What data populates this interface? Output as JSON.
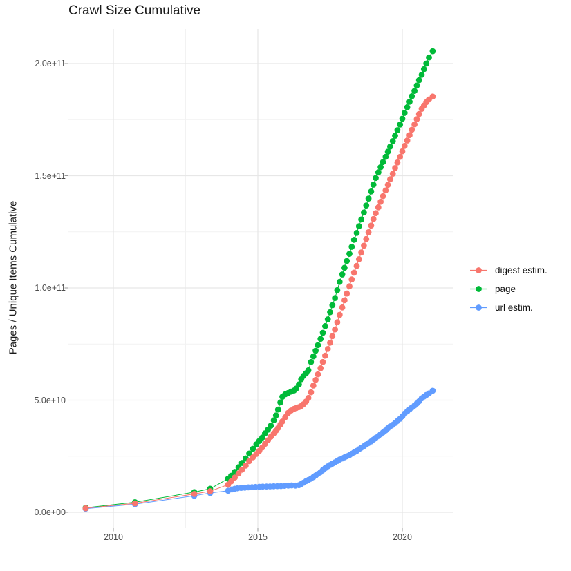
{
  "page": {
    "title": "Crawl Size Cumulative"
  },
  "chart_data": {
    "type": "scatter",
    "title": "Crawl Size Cumulative",
    "xlabel": "",
    "ylabel": "Pages / Unique Items Cumulative",
    "grid": true,
    "legend_position": "right",
    "background": "#ffffff",
    "gridline_color_major": "#e7e7e7",
    "gridline_color_minor": "#f2f2f2",
    "tick_color": "#999999",
    "axis_text_color": "#4d4d4d",
    "x_ticks": {
      "values": [
        2010,
        2015,
        2020
      ],
      "labels": [
        "2010",
        "2015",
        "2020"
      ]
    },
    "x_minor_ticks": [
      2012.5,
      2017.5
    ],
    "y_ticks": {
      "values_e9": [
        0,
        50,
        100,
        150,
        200
      ],
      "labels": [
        "0.0e+00",
        "5.0e+10",
        "1.0e+11",
        "1.5e+11",
        "2.0e+11"
      ]
    },
    "y_minor_ticks_e9": [
      25,
      75,
      125,
      175
    ],
    "xlim": [
      2008.45,
      2021.75
    ],
    "ylim": [
      0,
      205000000000.0
    ],
    "value_unit": "1e9 items",
    "series": [
      {
        "name": "digest estim.",
        "color": "#F8766D",
        "points_year_value_e9": [
          [
            2009.04,
            1.8
          ],
          [
            2010.75,
            4.0
          ],
          [
            2012.8,
            8.2
          ],
          [
            2013.35,
            9.4
          ],
          [
            2013.97,
            12.3
          ],
          [
            2014.08,
            13.8
          ],
          [
            2014.2,
            15.5
          ],
          [
            2014.33,
            17.3
          ],
          [
            2014.45,
            19.0
          ],
          [
            2014.58,
            20.8
          ],
          [
            2014.7,
            22.8
          ],
          [
            2014.83,
            24.5
          ],
          [
            2014.95,
            26.0
          ],
          [
            2015.05,
            27.4
          ],
          [
            2015.15,
            28.9
          ],
          [
            2015.25,
            30.5
          ],
          [
            2015.35,
            32.1
          ],
          [
            2015.45,
            33.7
          ],
          [
            2015.55,
            35.2
          ],
          [
            2015.63,
            36.4
          ],
          [
            2015.7,
            37.6
          ],
          [
            2015.78,
            39.1
          ],
          [
            2015.85,
            40.5
          ],
          [
            2015.95,
            42.4
          ],
          [
            2016.05,
            44.3
          ],
          [
            2016.15,
            45.4
          ],
          [
            2016.25,
            46.1
          ],
          [
            2016.33,
            46.5
          ],
          [
            2016.42,
            46.9
          ],
          [
            2016.5,
            47.4
          ],
          [
            2016.58,
            48.2
          ],
          [
            2016.67,
            49.4
          ],
          [
            2016.75,
            51.0
          ],
          [
            2016.84,
            53.5
          ],
          [
            2016.92,
            56.5
          ],
          [
            2017.0,
            59.0
          ],
          [
            2017.08,
            61.5
          ],
          [
            2017.17,
            64.2
          ],
          [
            2017.25,
            67.0
          ],
          [
            2017.33,
            69.8
          ],
          [
            2017.42,
            72.8
          ],
          [
            2017.5,
            75.6
          ],
          [
            2017.58,
            78.5
          ],
          [
            2017.67,
            81.5
          ],
          [
            2017.75,
            84.7
          ],
          [
            2017.83,
            88.0
          ],
          [
            2017.92,
            91.3
          ],
          [
            2018.0,
            94.5
          ],
          [
            2018.08,
            97.5
          ],
          [
            2018.17,
            100.7
          ],
          [
            2018.25,
            103.8
          ],
          [
            2018.33,
            106.8
          ],
          [
            2018.42,
            109.8
          ],
          [
            2018.5,
            112.8
          ],
          [
            2018.58,
            115.8
          ],
          [
            2018.67,
            118.8
          ],
          [
            2018.75,
            121.8
          ],
          [
            2018.83,
            124.8
          ],
          [
            2018.92,
            127.8
          ],
          [
            2019.0,
            130.7
          ],
          [
            2019.08,
            133.3
          ],
          [
            2019.17,
            135.9
          ],
          [
            2019.25,
            138.4
          ],
          [
            2019.33,
            140.9
          ],
          [
            2019.42,
            143.4
          ],
          [
            2019.5,
            145.9
          ],
          [
            2019.58,
            148.4
          ],
          [
            2019.67,
            150.9
          ],
          [
            2019.75,
            153.4
          ],
          [
            2019.83,
            155.9
          ],
          [
            2019.92,
            158.4
          ],
          [
            2020.0,
            160.9
          ],
          [
            2020.08,
            163.3
          ],
          [
            2020.17,
            165.7
          ],
          [
            2020.25,
            168.1
          ],
          [
            2020.33,
            170.5
          ],
          [
            2020.42,
            172.9
          ],
          [
            2020.5,
            175.2
          ],
          [
            2020.58,
            177.5
          ],
          [
            2020.67,
            179.8
          ],
          [
            2020.75,
            181.3
          ],
          [
            2020.83,
            182.8
          ],
          [
            2020.92,
            184.0
          ],
          [
            2021.05,
            185.3
          ]
        ]
      },
      {
        "name": "page",
        "color": "#00BA38",
        "points_year_value_e9": [
          [
            2009.04,
            2.0
          ],
          [
            2010.75,
            4.5
          ],
          [
            2012.8,
            9.0
          ],
          [
            2013.35,
            10.5
          ],
          [
            2013.97,
            15.0
          ],
          [
            2014.08,
            16.3
          ],
          [
            2014.2,
            18.0
          ],
          [
            2014.33,
            20.1
          ],
          [
            2014.45,
            22.0
          ],
          [
            2014.58,
            24.0
          ],
          [
            2014.7,
            26.2
          ],
          [
            2014.83,
            28.3
          ],
          [
            2014.95,
            30.3
          ],
          [
            2015.05,
            31.8
          ],
          [
            2015.15,
            33.3
          ],
          [
            2015.25,
            35.2
          ],
          [
            2015.35,
            36.8
          ],
          [
            2015.45,
            38.6
          ],
          [
            2015.55,
            41.0
          ],
          [
            2015.63,
            43.2
          ],
          [
            2015.7,
            45.8
          ],
          [
            2015.78,
            49.0
          ],
          [
            2015.85,
            51.5
          ],
          [
            2015.95,
            52.6
          ],
          [
            2016.05,
            53.2
          ],
          [
            2016.15,
            53.8
          ],
          [
            2016.25,
            54.3
          ],
          [
            2016.33,
            55.2
          ],
          [
            2016.42,
            57.0
          ],
          [
            2016.5,
            59.3
          ],
          [
            2016.58,
            60.8
          ],
          [
            2016.67,
            62.0
          ],
          [
            2016.75,
            63.3
          ],
          [
            2016.84,
            67.0
          ],
          [
            2016.92,
            69.5
          ],
          [
            2017.0,
            72.0
          ],
          [
            2017.08,
            74.5
          ],
          [
            2017.17,
            77.3
          ],
          [
            2017.25,
            80.0
          ],
          [
            2017.33,
            83.0
          ],
          [
            2017.42,
            86.0
          ],
          [
            2017.5,
            89.2
          ],
          [
            2017.58,
            92.3
          ],
          [
            2017.67,
            95.5
          ],
          [
            2017.75,
            99.0
          ],
          [
            2017.83,
            102.7
          ],
          [
            2017.92,
            106.0
          ],
          [
            2018.0,
            109.0
          ],
          [
            2018.08,
            112.0
          ],
          [
            2018.17,
            115.2
          ],
          [
            2018.25,
            118.3
          ],
          [
            2018.33,
            121.4
          ],
          [
            2018.42,
            124.5
          ],
          [
            2018.5,
            127.5
          ],
          [
            2018.58,
            130.5
          ],
          [
            2018.67,
            133.6
          ],
          [
            2018.75,
            136.7
          ],
          [
            2018.83,
            139.8
          ],
          [
            2018.92,
            143.0
          ],
          [
            2019.0,
            146.0
          ],
          [
            2019.08,
            149.0
          ],
          [
            2019.17,
            151.5
          ],
          [
            2019.25,
            153.8
          ],
          [
            2019.33,
            156.1
          ],
          [
            2019.42,
            158.4
          ],
          [
            2019.5,
            160.7
          ],
          [
            2019.58,
            163.0
          ],
          [
            2019.67,
            165.4
          ],
          [
            2019.75,
            167.8
          ],
          [
            2019.83,
            170.3
          ],
          [
            2019.92,
            172.8
          ],
          [
            2020.0,
            175.4
          ],
          [
            2020.08,
            178.0
          ],
          [
            2020.17,
            180.5
          ],
          [
            2020.25,
            183.0
          ],
          [
            2020.33,
            185.4
          ],
          [
            2020.42,
            187.8
          ],
          [
            2020.5,
            190.2
          ],
          [
            2020.58,
            192.6
          ],
          [
            2020.67,
            195.0
          ],
          [
            2020.75,
            197.5
          ],
          [
            2020.83,
            200.0
          ],
          [
            2020.92,
            202.7
          ],
          [
            2021.05,
            205.5
          ]
        ]
      },
      {
        "name": "url estim.",
        "color": "#619CFF",
        "points_year_value_e9": [
          [
            2009.04,
            1.6
          ],
          [
            2010.75,
            3.6
          ],
          [
            2012.8,
            7.4
          ],
          [
            2013.35,
            8.6
          ],
          [
            2013.97,
            9.6
          ],
          [
            2014.1,
            10.2
          ],
          [
            2014.2,
            10.5
          ],
          [
            2014.3,
            10.7
          ],
          [
            2014.42,
            10.9
          ],
          [
            2014.55,
            11.0
          ],
          [
            2014.67,
            11.1
          ],
          [
            2014.8,
            11.2
          ],
          [
            2014.92,
            11.3
          ],
          [
            2015.05,
            11.4
          ],
          [
            2015.17,
            11.45
          ],
          [
            2015.3,
            11.5
          ],
          [
            2015.42,
            11.55
          ],
          [
            2015.55,
            11.6
          ],
          [
            2015.67,
            11.65
          ],
          [
            2015.8,
            11.7
          ],
          [
            2015.92,
            11.8
          ],
          [
            2016.05,
            11.9
          ],
          [
            2016.17,
            12.0
          ],
          [
            2016.3,
            11.9
          ],
          [
            2016.42,
            12.1
          ],
          [
            2016.5,
            12.6
          ],
          [
            2016.58,
            13.2
          ],
          [
            2016.67,
            13.9
          ],
          [
            2016.75,
            14.4
          ],
          [
            2016.84,
            15.0
          ],
          [
            2016.92,
            15.7
          ],
          [
            2017.0,
            16.4
          ],
          [
            2017.08,
            17.1
          ],
          [
            2017.17,
            17.9
          ],
          [
            2017.25,
            18.8
          ],
          [
            2017.33,
            19.7
          ],
          [
            2017.42,
            20.5
          ],
          [
            2017.5,
            21.1
          ],
          [
            2017.58,
            21.7
          ],
          [
            2017.67,
            22.3
          ],
          [
            2017.75,
            22.9
          ],
          [
            2017.83,
            23.5
          ],
          [
            2017.92,
            24.0
          ],
          [
            2018.0,
            24.5
          ],
          [
            2018.08,
            25.0
          ],
          [
            2018.17,
            25.5
          ],
          [
            2018.25,
            26.1
          ],
          [
            2018.33,
            26.7
          ],
          [
            2018.42,
            27.4
          ],
          [
            2018.5,
            28.1
          ],
          [
            2018.58,
            28.8
          ],
          [
            2018.67,
            29.5
          ],
          [
            2018.75,
            30.2
          ],
          [
            2018.83,
            30.9
          ],
          [
            2018.92,
            31.6
          ],
          [
            2019.0,
            32.4
          ],
          [
            2019.08,
            33.2
          ],
          [
            2019.17,
            34.0
          ],
          [
            2019.25,
            34.8
          ],
          [
            2019.33,
            35.6
          ],
          [
            2019.42,
            36.5
          ],
          [
            2019.5,
            37.5
          ],
          [
            2019.58,
            38.3
          ],
          [
            2019.67,
            39.0
          ],
          [
            2019.75,
            39.8
          ],
          [
            2019.83,
            40.7
          ],
          [
            2019.92,
            41.7
          ],
          [
            2020.0,
            42.8
          ],
          [
            2020.08,
            44.0
          ],
          [
            2020.17,
            45.0
          ],
          [
            2020.25,
            45.9
          ],
          [
            2020.33,
            46.7
          ],
          [
            2020.42,
            47.6
          ],
          [
            2020.5,
            48.5
          ],
          [
            2020.58,
            49.5
          ],
          [
            2020.67,
            50.8
          ],
          [
            2020.75,
            51.6
          ],
          [
            2020.83,
            52.3
          ],
          [
            2020.92,
            53.0
          ],
          [
            2021.05,
            54.2
          ]
        ]
      }
    ]
  }
}
